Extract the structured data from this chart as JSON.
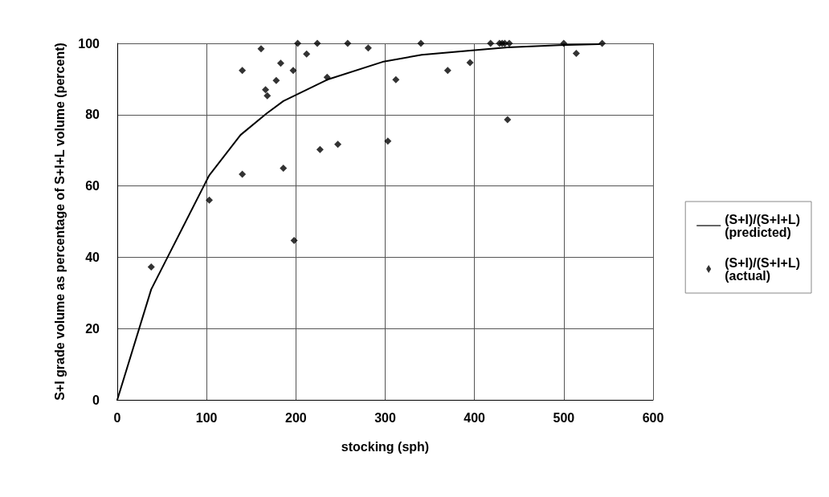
{
  "chart_data": {
    "type": "scatter",
    "xlabel": "stocking (sph)",
    "ylabel": "S+I grade volume as percentage of S+I+L volume (percent)",
    "xlim": [
      0,
      600
    ],
    "xticks": [
      0,
      100,
      200,
      300,
      400,
      500,
      600
    ],
    "ylim": [
      0,
      100
    ],
    "yticks": [
      0,
      20,
      40,
      60,
      80,
      100
    ],
    "grid": true,
    "legend": "right",
    "series": [
      {
        "name": "(S+I)/(S+I+L) (predicted)",
        "type": "line",
        "color": "#000000",
        "marker": "none",
        "line_style": "solid",
        "x": [
          0,
          38,
          103,
          138,
          167,
          186,
          235,
          297,
          341,
          395,
          437,
          495,
          540
        ],
        "values": [
          0,
          31,
          63,
          74.3,
          80.3,
          83.8,
          89.8,
          94.8,
          96.8,
          98,
          98.9,
          99.5,
          99.8
        ]
      },
      {
        "name": "(S+I)/(S+I+L) (actual)",
        "color": "#000000",
        "marker": "diamond",
        "x": [
          38,
          103,
          140,
          140,
          161,
          166,
          168,
          178,
          183,
          186,
          197,
          198,
          202,
          212,
          224,
          227,
          235,
          247,
          258,
          281,
          303,
          312,
          340,
          370,
          395,
          418,
          428,
          431,
          434,
          437,
          439,
          500,
          514,
          543
        ],
        "values": [
          37.3,
          56,
          92.4,
          63.3,
          98.5,
          87,
          85.3,
          89.6,
          94.4,
          65,
          92.4,
          44.7,
          100,
          97,
          100,
          70.2,
          90.5,
          71.7,
          100,
          98.7,
          72.6,
          89.8,
          100,
          92.4,
          94.6,
          100,
          100,
          100,
          100,
          78.6,
          100,
          100,
          97.2,
          100
        ]
      }
    ]
  }
}
